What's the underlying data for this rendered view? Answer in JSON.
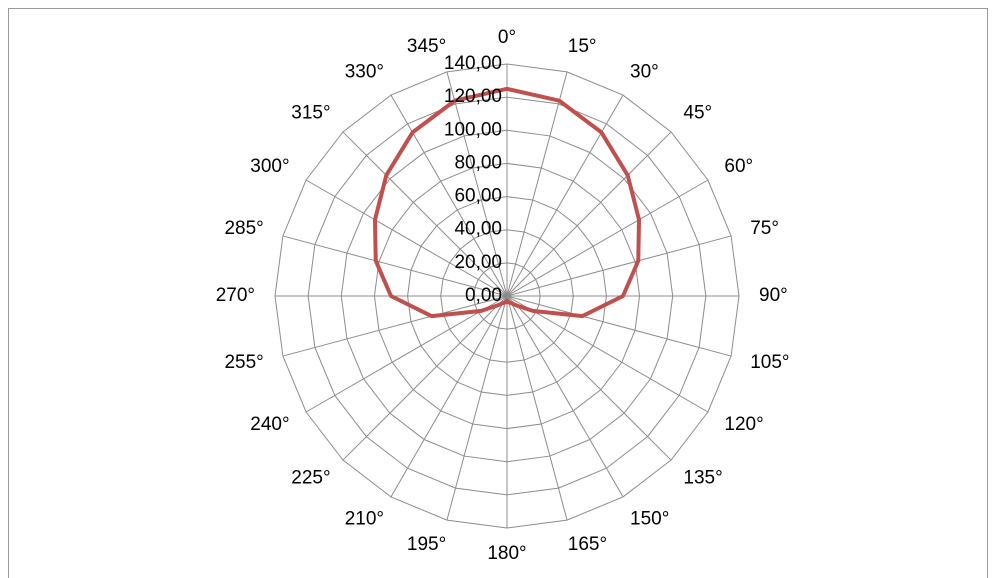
{
  "chart_data": {
    "type": "radar",
    "title": "",
    "angle_labels": [
      "0°",
      "15°",
      "30°",
      "45°",
      "60°",
      "75°",
      "90°",
      "105°",
      "120°",
      "135°",
      "150°",
      "165°",
      "180°",
      "195°",
      "210°",
      "225°",
      "240°",
      "255°",
      "270°",
      "285°",
      "300°",
      "315°",
      "330°",
      "345°"
    ],
    "radial_ticks": [
      "0,00",
      "20,00",
      "40,00",
      "60,00",
      "80,00",
      "100,00",
      "120,00",
      "140,00"
    ],
    "rmax": 140,
    "grid": true,
    "legend": "none",
    "series": [
      {
        "color": "#c0504d",
        "values": [
          125,
          122,
          114,
          103,
          92,
          82,
          70,
          47,
          18,
          8,
          5,
          4,
          3,
          4,
          5,
          8,
          18,
          47,
          70,
          82,
          92,
          103,
          114,
          122
        ]
      }
    ]
  }
}
